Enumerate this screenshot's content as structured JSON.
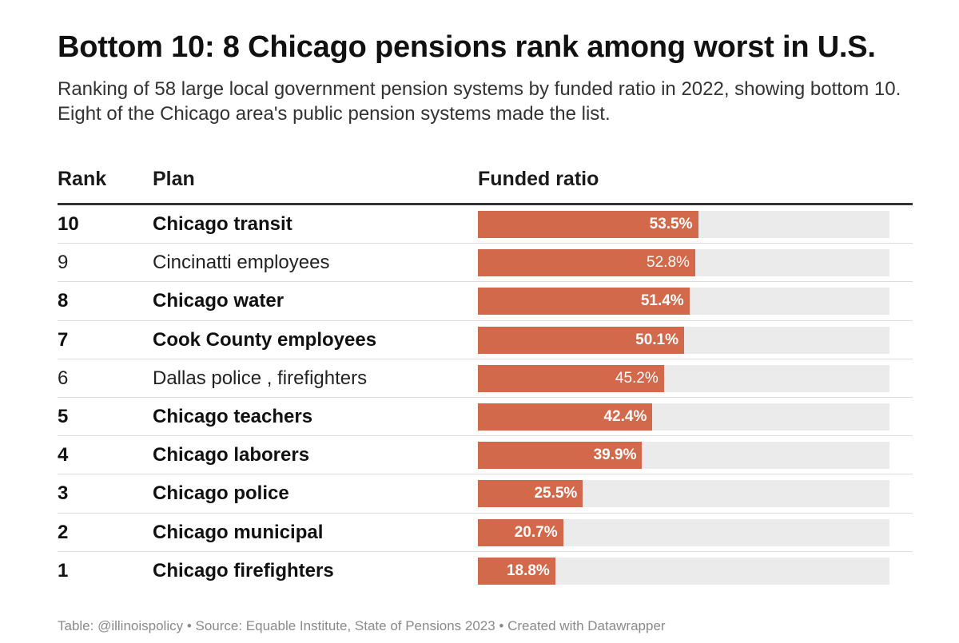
{
  "header": {
    "title": "Bottom 10: 8 Chicago pensions rank among worst in U.S.",
    "subtitle": "Ranking of 58 large local government pension systems by funded ratio in 2022, showing bottom 10. Eight of the Chicago area's public pension systems made the list."
  },
  "table": {
    "col_rank": "Rank",
    "col_plan": "Plan",
    "col_ratio": "Funded ratio"
  },
  "colors": {
    "bar": "#d2694a",
    "track": "#ebebeb"
  },
  "chart_data": {
    "type": "bar",
    "title": "Bottom 10: 8 Chicago pensions rank among worst in U.S.",
    "xlabel": "Funded ratio",
    "ylabel": "Plan",
    "xlim": [
      0,
      100
    ],
    "rows": [
      {
        "rank": "10",
        "plan": "Chicago transit",
        "value": 53.5,
        "label": "53.5%",
        "chicago": true
      },
      {
        "rank": "9",
        "plan": "Cincinatti employees",
        "value": 52.8,
        "label": "52.8%",
        "chicago": false
      },
      {
        "rank": "8",
        "plan": "Chicago water",
        "value": 51.4,
        "label": "51.4%",
        "chicago": true
      },
      {
        "rank": "7",
        "plan": "Cook County employees",
        "value": 50.1,
        "label": "50.1%",
        "chicago": true
      },
      {
        "rank": "6",
        "plan": "Dallas police , firefighters",
        "value": 45.2,
        "label": "45.2%",
        "chicago": false
      },
      {
        "rank": "5",
        "plan": "Chicago teachers",
        "value": 42.4,
        "label": "42.4%",
        "chicago": true
      },
      {
        "rank": "4",
        "plan": "Chicago laborers",
        "value": 39.9,
        "label": "39.9%",
        "chicago": true
      },
      {
        "rank": "3",
        "plan": "Chicago police",
        "value": 25.5,
        "label": "25.5%",
        "chicago": true
      },
      {
        "rank": "2",
        "plan": "Chicago municipal",
        "value": 20.7,
        "label": "20.7%",
        "chicago": true
      },
      {
        "rank": "1",
        "plan": "Chicago firefighters",
        "value": 18.8,
        "label": "18.8%",
        "chicago": true
      }
    ]
  },
  "footer": {
    "credit": "Table: @illinoispolicy • Source: Equable Institute, State of Pensions 2023 • Created with Datawrapper"
  }
}
